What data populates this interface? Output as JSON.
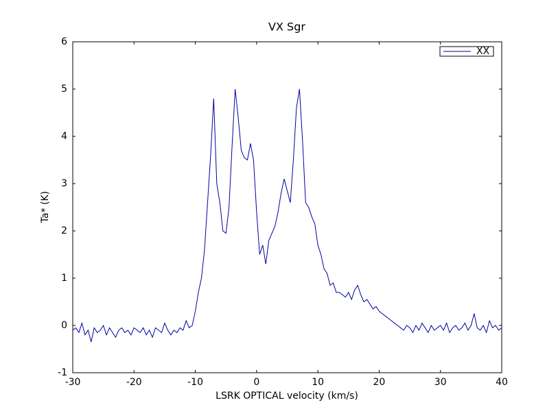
{
  "chart_data": {
    "type": "line",
    "title": "VX Sgr",
    "xlabel": "LSRK OPTICAL velocity (km/s)",
    "ylabel": "Ta* (K)",
    "x": [
      -30,
      -29.5,
      -29,
      -28.5,
      -28,
      -27.5,
      -27,
      -26.5,
      -26,
      -25.5,
      -25,
      -24.5,
      -24,
      -23.5,
      -23,
      -22.5,
      -22,
      -21.5,
      -21,
      -20.5,
      -20,
      -19.5,
      -19,
      -18.5,
      -18,
      -17.5,
      -17,
      -16.5,
      -16,
      -15.5,
      -15,
      -14.5,
      -14,
      -13.5,
      -13,
      -12.5,
      -12,
      -11.5,
      -11,
      -10.5,
      -10,
      -9.5,
      -9,
      -8.5,
      -8,
      -7.5,
      -7,
      -6.5,
      -6,
      -5.5,
      -5,
      -4.5,
      -4,
      -3.5,
      -3,
      -2.5,
      -2,
      -1.5,
      -1,
      -0.5,
      0,
      0.5,
      1,
      1.5,
      2,
      2.5,
      3,
      3.5,
      4,
      4.5,
      5,
      5.5,
      6,
      6.5,
      7,
      7.5,
      8,
      8.5,
      9,
      9.5,
      10,
      10.5,
      11,
      11.5,
      12,
      12.5,
      13,
      13.5,
      14,
      14.5,
      15,
      15.5,
      16,
      16.5,
      17,
      17.5,
      18,
      18.5,
      19,
      19.5,
      20,
      20.5,
      21,
      21.5,
      22,
      22.5,
      23,
      23.5,
      24,
      24.5,
      25,
      25.5,
      26,
      26.5,
      27,
      27.5,
      28,
      28.5,
      29,
      29.5,
      30,
      30.5,
      31,
      31.5,
      32,
      32.5,
      33,
      33.5,
      34,
      34.5,
      35,
      35.5,
      36,
      36.5,
      37,
      37.5,
      38,
      38.5,
      39,
      39.5,
      40
    ],
    "series": [
      {
        "name": "XX",
        "color": "#0000a0",
        "values": [
          -0.1,
          -0.05,
          -0.15,
          0.05,
          -0.2,
          -0.1,
          -0.35,
          -0.05,
          -0.15,
          -0.1,
          0.0,
          -0.2,
          -0.05,
          -0.15,
          -0.25,
          -0.1,
          -0.05,
          -0.15,
          -0.1,
          -0.2,
          -0.05,
          -0.1,
          -0.15,
          -0.05,
          -0.2,
          -0.1,
          -0.25,
          -0.05,
          -0.1,
          -0.15,
          0.05,
          -0.1,
          -0.2,
          -0.1,
          -0.15,
          -0.05,
          -0.1,
          0.1,
          -0.05,
          0.0,
          0.3,
          0.7,
          1.0,
          1.6,
          2.6,
          3.6,
          4.8,
          3.0,
          2.6,
          2.0,
          1.95,
          2.5,
          3.8,
          5.0,
          4.4,
          3.7,
          3.55,
          3.5,
          3.85,
          3.5,
          2.4,
          1.5,
          1.7,
          1.3,
          1.8,
          1.95,
          2.1,
          2.4,
          2.8,
          3.1,
          2.85,
          2.6,
          3.5,
          4.6,
          5.0,
          3.9,
          2.6,
          2.5,
          2.3,
          2.15,
          1.7,
          1.5,
          1.2,
          1.1,
          0.85,
          0.9,
          0.7,
          0.7,
          0.65,
          0.6,
          0.7,
          0.55,
          0.75,
          0.85,
          0.65,
          0.5,
          0.55,
          0.45,
          0.35,
          0.4,
          0.3,
          0.25,
          0.2,
          0.15,
          0.1,
          0.05,
          0.0,
          -0.05,
          -0.1,
          0.0,
          -0.05,
          -0.15,
          0.0,
          -0.1,
          0.05,
          -0.05,
          -0.15,
          0.0,
          -0.1,
          -0.05,
          0.0,
          -0.1,
          0.05,
          -0.15,
          -0.05,
          0.0,
          -0.1,
          -0.05,
          0.05,
          -0.1,
          0.0,
          0.25,
          -0.05,
          -0.1,
          0.0,
          -0.15,
          0.1,
          -0.05,
          0.0,
          -0.1,
          -0.05
        ]
      }
    ],
    "xlim": [
      -30,
      40
    ],
    "xticks": [
      -30,
      -20,
      -10,
      0,
      10,
      20,
      30,
      40
    ],
    "ylim": [
      -1,
      6
    ],
    "yticks": [
      -1,
      0,
      1,
      2,
      3,
      4,
      5,
      6
    ],
    "legend": "upper right",
    "grid": false
  }
}
